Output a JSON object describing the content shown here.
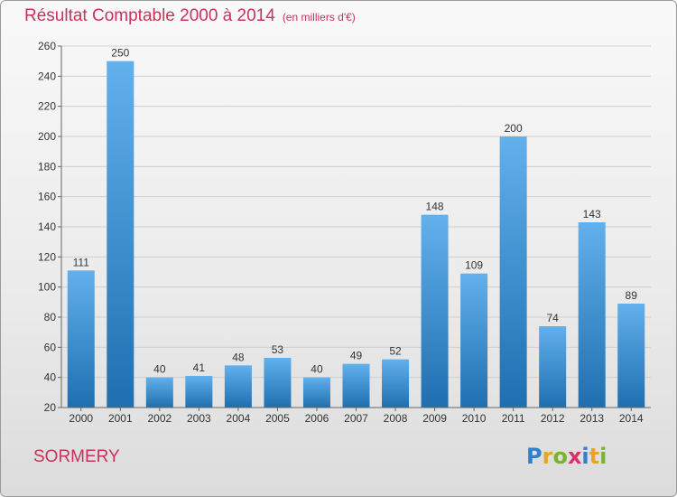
{
  "title": "Résultat Comptable 2000 à 2014",
  "unit": "(en milliers d'€)",
  "commune": "SORMERY",
  "logo": {
    "letters": [
      "P",
      "r",
      "o",
      "x",
      "i",
      "t",
      "i"
    ],
    "colors": [
      "#2f7fc9",
      "#e8a52a",
      "#7bb32e",
      "#d6336c",
      "#2f7fc9",
      "#e8a52a",
      "#7bb32e"
    ]
  },
  "colors": {
    "title": "#c8325b",
    "bar_top": "#62b0ec",
    "bar_bottom": "#1f6fb0"
  },
  "chart_data": {
    "type": "bar",
    "categories": [
      "2000",
      "2001",
      "2002",
      "2003",
      "2004",
      "2005",
      "2006",
      "2007",
      "2008",
      "2009",
      "2010",
      "2011",
      "2012",
      "2013",
      "2014"
    ],
    "values": [
      111,
      250,
      40,
      41,
      48,
      53,
      40,
      49,
      52,
      148,
      109,
      200,
      74,
      143,
      89
    ],
    "ylim": [
      20,
      260
    ],
    "yticks": [
      20,
      40,
      60,
      80,
      100,
      120,
      140,
      160,
      180,
      200,
      220,
      240,
      260
    ],
    "grid": true,
    "title": "Résultat Comptable 2000 à 2014",
    "xlabel": "",
    "ylabel": ""
  }
}
